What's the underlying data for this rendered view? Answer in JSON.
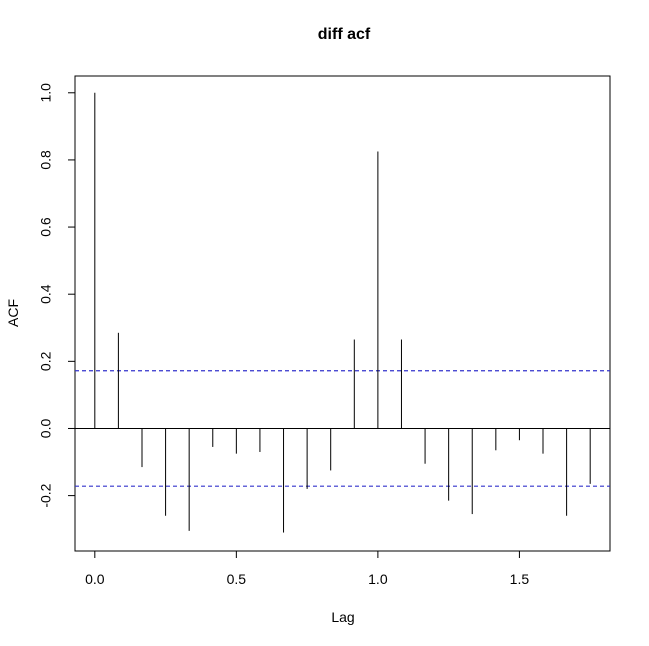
{
  "chart_data": {
    "type": "bar",
    "title": "diff acf",
    "xlabel": "Lag",
    "ylabel": "ACF",
    "x": [
      0.0,
      0.0833,
      0.1667,
      0.25,
      0.3333,
      0.4167,
      0.5,
      0.5833,
      0.6667,
      0.75,
      0.8333,
      0.9167,
      1.0,
      1.0833,
      1.1667,
      1.25,
      1.3333,
      1.4167,
      1.5,
      1.5833,
      1.6667,
      1.75
    ],
    "values": [
      1.0,
      0.285,
      -0.115,
      -0.26,
      -0.305,
      -0.055,
      -0.075,
      -0.07,
      -0.31,
      -0.18,
      -0.125,
      0.265,
      0.825,
      0.265,
      -0.105,
      -0.215,
      -0.255,
      -0.065,
      -0.035,
      -0.075,
      -0.26,
      -0.165
    ],
    "confidence_band": [
      -0.172,
      0.172
    ],
    "zero_line": 0,
    "xlim": [
      -0.07,
      1.82
    ],
    "ylim": [
      -0.365,
      1.05
    ],
    "xticks": [
      "0.0",
      "0.5",
      "1.0",
      "1.5"
    ],
    "yticks": [
      "-0.2",
      "0.0",
      "0.2",
      "0.4",
      "0.6",
      "0.8",
      "1.0"
    ],
    "grid": false,
    "colors": {
      "bars": "#000000",
      "confidence_band": "#3333cc",
      "axis": "#000000"
    }
  }
}
